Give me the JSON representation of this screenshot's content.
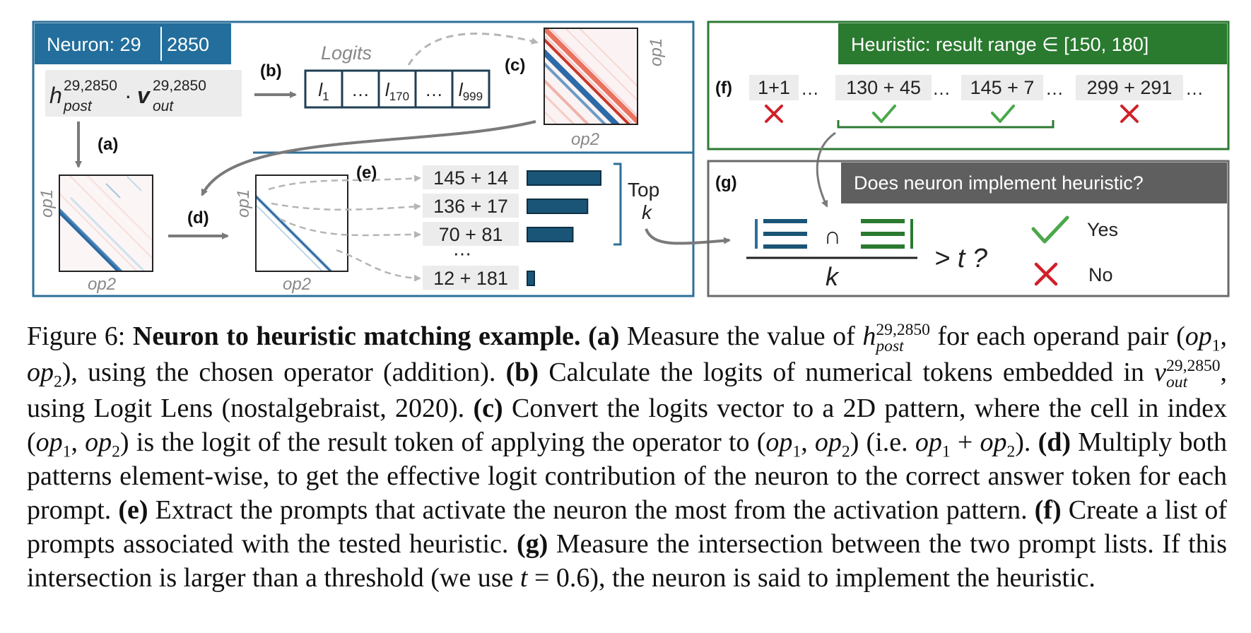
{
  "figure": {
    "neuron_label": "Neuron: 29",
    "neuron_index": "2850",
    "h_base": "h",
    "h_sup": "29,2850",
    "h_sub": "post",
    "dot": "·",
    "v_base": "v",
    "v_sup": "29,2850",
    "v_sub": "out",
    "step_a": "(a)",
    "step_b": "(b)",
    "step_c": "(c)",
    "step_d": "(d)",
    "step_e": "(e)",
    "step_f": "(f)",
    "step_g": "(g)",
    "logits_label": "Logits",
    "logits_cells": [
      "l1",
      "…",
      "l170",
      "…",
      "l999"
    ],
    "axis_op1": "op1",
    "axis_op2": "op2",
    "top_k": [
      "145 + 14",
      "136 + 17",
      "70 + 81",
      "12 + 181"
    ],
    "top_k_bar_fractions": [
      1.0,
      0.82,
      0.62,
      0.08
    ],
    "top_k_ellipsis": "⋯",
    "top_label": "Top",
    "k_label": "k",
    "heuristic_title": "Heuristic: result range ∈ [150, 180]",
    "heuristic_examples": [
      {
        "text": "1+1",
        "match": false
      },
      {
        "text": "130 + 45",
        "match": true
      },
      {
        "text": "145 + 7",
        "match": true
      },
      {
        "text": "299 + 291",
        "match": false
      }
    ],
    "dots": "…",
    "question": "Does neuron implement heuristic?",
    "intersect": "∩",
    "threshold": "> t ?",
    "denominator": "k",
    "yes_label": "Yes",
    "no_label": "No",
    "colors": {
      "blue_frame": "#2e6f99",
      "blue_title_bg": "#236e9c",
      "bar_blue": "#1a5577",
      "green_frame": "#2d7a33",
      "green_title_bg": "#2a7a2f",
      "grey_frame": "#6a6a6a",
      "grey_title_bg": "#5f5f5f",
      "check_green": "#4aa84a",
      "cross_red": "#d0202a"
    }
  },
  "caption": {
    "figure_num": "Figure 6:",
    "title": "Neuron to heuristic matching example.",
    "a_label": "(a)",
    "a_text": "Measure the value of",
    "a_h": "h",
    "a_h_sup": "29,2850",
    "a_h_sub": "post",
    "a_text2": "for each operand pair (",
    "op1": "op",
    "one": "1",
    "op2": "op",
    "two": "2",
    "a_text3": "), using the chosen operator (addition).",
    "b_label": "(b)",
    "b_text": "Calculate the logits of numerical tokens embedded in",
    "b_v": "v",
    "b_v_sup": "29,2850",
    "b_v_sub": "out",
    "b_text2": ", using Logit Lens (nostalgebraist, 2020).",
    "c_label": "(c)",
    "c_text": "Convert the logits vector to a 2D pattern, where the cell in index (",
    "c_text2": ") is the logit of the result token of applying the operator to (",
    "c_text3": ") (i.e.",
    "plus": "+",
    "c_text4": ").",
    "d_label": "(d)",
    "d_text": "Multiply both patterns element-wise, to get the effective logit contribution of the neuron to the correct answer token for each prompt.",
    "e_label": "(e)",
    "e_text": "Extract the prompts that activate the neuron the most from the activation pattern.",
    "f_label": "(f)",
    "f_text": "Create a list of prompts associated with the tested heuristic.",
    "g_label": "(g)",
    "g_text": "Measure the intersection between the two prompt lists. If this intersection is larger than a threshold (we use",
    "g_t": "t",
    "g_eq": "= 0.6",
    "g_text2": "), the neuron is said to implement the heuristic."
  }
}
